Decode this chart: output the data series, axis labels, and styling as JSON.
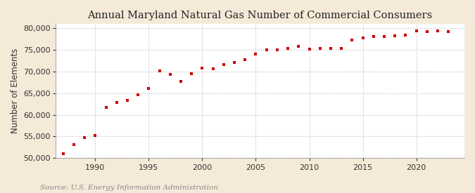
{
  "title": "Annual Maryland Natural Gas Number of Commercial Consumers",
  "ylabel": "Number of Elements",
  "source": "Source: U.S. Energy Information Administration",
  "background_color": "#f5ead8",
  "plot_background_color": "#ffffff",
  "marker_color": "#cc0000",
  "years": [
    1987,
    1988,
    1989,
    1990,
    1991,
    1992,
    1993,
    1994,
    1995,
    1996,
    1997,
    1998,
    1999,
    2000,
    2001,
    2002,
    2003,
    2004,
    2005,
    2006,
    2007,
    2008,
    2009,
    2010,
    2011,
    2012,
    2013,
    2014,
    2015,
    2016,
    2017,
    2018,
    2019,
    2020,
    2021,
    2022,
    2023
  ],
  "values": [
    51000,
    53100,
    54700,
    55300,
    61800,
    62800,
    63400,
    64600,
    66100,
    70100,
    69300,
    67700,
    69500,
    70900,
    70700,
    71600,
    72200,
    72800,
    74000,
    75100,
    75100,
    75300,
    75800,
    75200,
    75400,
    75300,
    75400,
    77300,
    77800,
    78100,
    78200,
    78300,
    78500,
    79500,
    79200,
    79400,
    79200
  ],
  "xlim": [
    1986.3,
    2024.5
  ],
  "ylim": [
    50000,
    81000
  ],
  "yticks": [
    50000,
    55000,
    60000,
    65000,
    70000,
    75000,
    80000
  ],
  "xticks": [
    1990,
    1995,
    2000,
    2005,
    2010,
    2015,
    2020
  ],
  "grid_color": "#bbbbbb",
  "title_fontsize": 10.5,
  "axis_fontsize": 8.5,
  "tick_fontsize": 8,
  "source_fontsize": 7.5
}
